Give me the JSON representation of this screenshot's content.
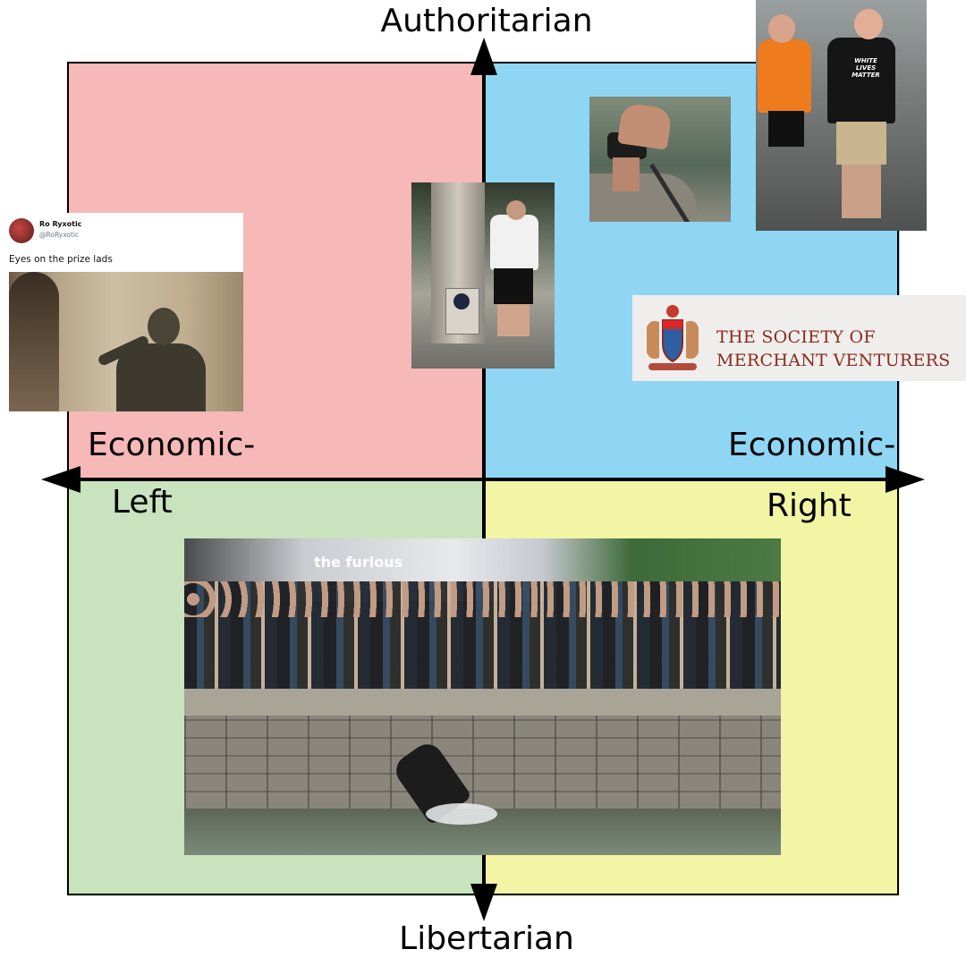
{
  "axes": {
    "top": "Authoritarian",
    "bottom": "Libertarian",
    "left_line1": "Economic-",
    "left_line2": "Left",
    "right_line1": "Economic-",
    "right_line2": "Right"
  },
  "colors": {
    "auth_left": "#f7b8b8",
    "auth_right": "#8fd6f5",
    "lib_left": "#c8e3be",
    "lib_right": "#f2f5a4",
    "society_text": "#8a2a1e"
  },
  "tweet": {
    "name": "Ro Ryxotic",
    "handle": "@RoRyxotic",
    "text": "Eyes on the prize lads"
  },
  "society": {
    "line1": "THE SOCIETY OF",
    "line2": "MERCHANT VENTURERS"
  },
  "photos": {
    "men_shirt": "WHITE LIVES MATTER",
    "statue_sign": "the furious"
  }
}
